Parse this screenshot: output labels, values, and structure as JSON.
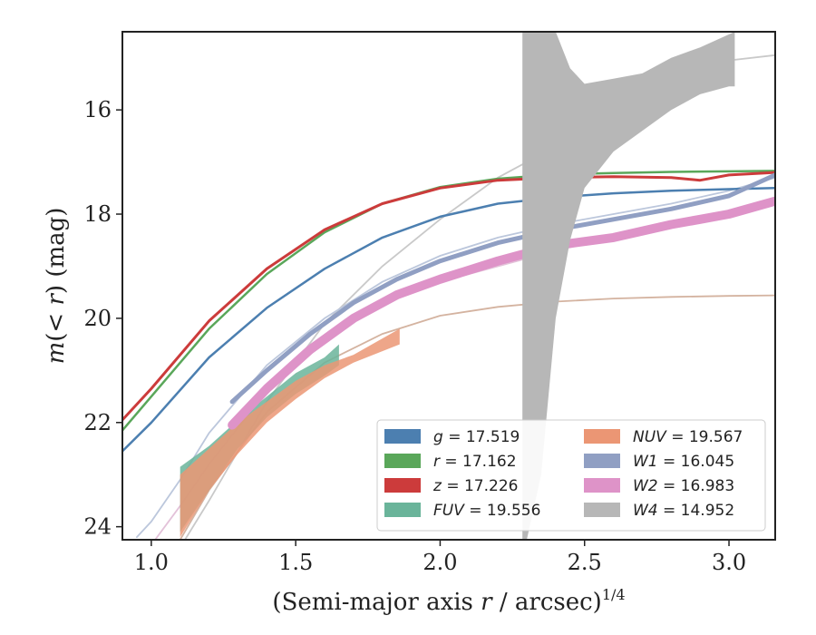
{
  "chart_data": {
    "type": "line",
    "title": "",
    "xlabel": "(Semi-major axis r / arcsec)^{1/4}",
    "ylabel": "m(<r) (mag)",
    "xlim": [
      0.9,
      3.16
    ],
    "ylim": [
      24.25,
      14.5
    ],
    "y_inverted": true,
    "x_ticks": [
      1.0,
      1.5,
      2.0,
      2.5,
      3.0
    ],
    "x_tick_labels": [
      "1.0",
      "1.5",
      "2.0",
      "2.5",
      "3.0"
    ],
    "y_ticks": [
      16,
      18,
      20,
      22,
      24
    ],
    "y_tick_labels": [
      "16",
      "18",
      "20",
      "22",
      "24"
    ],
    "grid": false,
    "legend_placement": "lower-right",
    "legend_columns": 2,
    "series": [
      {
        "name": "g = 17.519",
        "name_sym": "g",
        "value_text": "= 17.519",
        "color": "#4c7fb0",
        "width": 2.5,
        "x": [
          0.9,
          1.0,
          1.2,
          1.4,
          1.6,
          1.8,
          2.0,
          2.2,
          2.4,
          2.6,
          2.8,
          3.0,
          3.16
        ],
        "y": [
          22.55,
          22.0,
          20.75,
          19.8,
          19.05,
          18.45,
          18.05,
          17.8,
          17.68,
          17.6,
          17.55,
          17.52,
          17.5
        ]
      },
      {
        "name": "r = 17.162",
        "name_sym": "r",
        "value_text": "= 17.162",
        "color": "#5aa75a",
        "width": 2.5,
        "x": [
          0.9,
          1.0,
          1.2,
          1.4,
          1.6,
          1.8,
          2.0,
          2.2,
          2.4,
          2.6,
          2.8,
          3.0,
          3.16
        ],
        "y": [
          22.15,
          21.5,
          20.2,
          19.15,
          18.35,
          17.8,
          17.48,
          17.32,
          17.24,
          17.21,
          17.19,
          17.18,
          17.17
        ]
      },
      {
        "name": "z = 17.226",
        "name_sym": "z",
        "value_text": "= 17.226",
        "color": "#cc3b3b",
        "width": 3,
        "x": [
          0.9,
          1.0,
          1.2,
          1.4,
          1.6,
          1.8,
          2.0,
          2.2,
          2.4,
          2.6,
          2.8,
          2.9,
          3.0,
          3.16
        ],
        "y": [
          21.95,
          21.35,
          20.05,
          19.05,
          18.3,
          17.8,
          17.5,
          17.35,
          17.3,
          17.28,
          17.3,
          17.35,
          17.25,
          17.2
        ]
      },
      {
        "name": "FUV = 19.556",
        "name_sym": "FUV",
        "value_text": "= 19.556",
        "color": "#6ab49a",
        "width": 1.5,
        "x": [
          1.1,
          1.2,
          1.3,
          1.4,
          1.5,
          1.6,
          1.65
        ],
        "y_upper": [
          22.85,
          22.45,
          21.95,
          21.5,
          21.05,
          20.75,
          20.5
        ],
        "y_lower": [
          24.1,
          23.3,
          22.5,
          21.9,
          21.45,
          21.1,
          20.9
        ]
      },
      {
        "name": "NUV = 19.567",
        "name_sym": "NUV",
        "value_text": "= 19.567",
        "color": "#eb9674",
        "width": 1.5,
        "x": [
          1.1,
          1.2,
          1.3,
          1.4,
          1.5,
          1.6,
          1.7,
          1.86
        ],
        "y_upper": [
          23.0,
          22.5,
          22.0,
          21.6,
          21.2,
          20.9,
          20.7,
          20.2
        ],
        "y_lower": [
          24.2,
          23.3,
          22.6,
          22.0,
          21.55,
          21.15,
          20.85,
          20.5
        ]
      },
      {
        "name": "W1 = 16.045",
        "name_sym": "W1",
        "value_text": "= 16.045",
        "color": "#909fc3",
        "width": 5,
        "x": [
          1.28,
          1.4,
          1.55,
          1.7,
          1.85,
          2.0,
          2.2,
          2.4,
          2.6,
          2.8,
          3.0,
          3.16
        ],
        "y": [
          21.6,
          21.0,
          20.3,
          19.7,
          19.25,
          18.9,
          18.55,
          18.3,
          18.1,
          17.9,
          17.65,
          17.25
        ]
      },
      {
        "name": "W2 = 16.983",
        "name_sym": "W2",
        "value_text": "= 16.983",
        "color": "#de93c8",
        "width": 10,
        "x": [
          1.28,
          1.4,
          1.55,
          1.7,
          1.85,
          2.0,
          2.2,
          2.4,
          2.6,
          2.8,
          2.9,
          3.0,
          3.16
        ],
        "y": [
          22.05,
          21.35,
          20.6,
          20.0,
          19.55,
          19.25,
          18.9,
          18.6,
          18.45,
          18.2,
          18.1,
          18.0,
          17.75
        ]
      },
      {
        "name": "W4 = 14.952",
        "name_sym": "W4",
        "value_text": "= 14.952",
        "color": "#b7b7b7",
        "width": 1.5,
        "x": [
          2.285,
          2.3,
          2.35,
          2.4,
          2.45,
          2.5,
          2.6,
          2.7,
          2.8,
          2.9,
          3.0,
          3.02
        ],
        "y_upper": [
          14.5,
          14.5,
          14.5,
          14.5,
          15.2,
          15.5,
          15.4,
          15.3,
          15.0,
          14.8,
          14.55,
          14.5
        ],
        "y_lower": [
          24.25,
          24.25,
          23.0,
          20.0,
          18.5,
          17.5,
          16.8,
          16.4,
          16.0,
          15.7,
          15.55,
          15.55
        ]
      }
    ],
    "model_curves": [
      {
        "color": "#c9c9c9",
        "width": 1.8,
        "x": [
          1.1,
          1.2,
          1.4,
          1.6,
          1.8,
          2.0,
          2.2,
          2.4,
          2.6,
          2.8,
          3.0,
          3.16
        ],
        "y": [
          24.4,
          23.5,
          21.6,
          20.1,
          19.0,
          18.1,
          17.3,
          16.7,
          16.1,
          15.6,
          15.05,
          14.95
        ]
      },
      {
        "color": "#d4b3a0",
        "width": 1.8,
        "x": [
          1.1,
          1.2,
          1.4,
          1.6,
          1.8,
          2.0,
          2.2,
          2.4,
          2.6,
          2.8,
          3.0,
          3.16
        ],
        "y": [
          24.25,
          23.3,
          21.8,
          20.85,
          20.3,
          19.95,
          19.78,
          19.68,
          19.62,
          19.59,
          19.57,
          19.56
        ]
      },
      {
        "color": "#bcc7dc",
        "width": 1.8,
        "x": [
          0.95,
          1.0,
          1.1,
          1.2,
          1.4,
          1.6,
          1.8,
          2.0,
          2.2,
          2.4,
          2.6,
          2.8,
          3.0,
          3.16
        ],
        "y": [
          24.2,
          23.9,
          23.1,
          22.2,
          20.9,
          20.0,
          19.3,
          18.8,
          18.45,
          18.2,
          18.0,
          17.8,
          17.55,
          17.3
        ]
      },
      {
        "color": "#e3c2d9",
        "width": 1.8,
        "x": [
          1.0,
          1.1,
          1.2,
          1.4,
          1.6,
          1.8,
          2.0,
          2.2,
          2.4,
          2.6,
          2.8,
          3.0,
          3.16
        ],
        "y": [
          24.35,
          23.6,
          22.8,
          21.4,
          20.45,
          19.7,
          19.3,
          19.0,
          18.7,
          18.45,
          18.2,
          17.95,
          17.8
        ]
      }
    ]
  }
}
